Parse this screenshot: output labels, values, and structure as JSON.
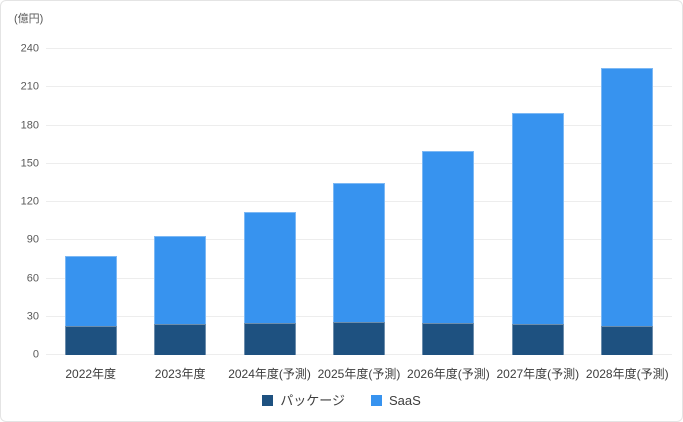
{
  "unit_label": "(億円)",
  "colors": {
    "saas": "#3793ef",
    "package": "#1e5180",
    "gridline": "#ededed",
    "frame_border": "#e4e4e4",
    "tick_text": "#595959",
    "label_text": "#3d3d3d",
    "background": "#ffffff"
  },
  "legend": {
    "items": [
      {
        "label": "パッケージ",
        "color": "#1e5180"
      },
      {
        "label": "SaaS",
        "color": "#3793ef"
      }
    ]
  },
  "chart_data": {
    "type": "bar",
    "stacked": true,
    "title": "",
    "ylabel": "(億円)",
    "xlabel": "",
    "categories": [
      "2022年度",
      "2023年度",
      "2024年度(予測)",
      "2025年度(予測)",
      "2026年度(予測)",
      "2027年度(予測)",
      "2028年度(予測)"
    ],
    "series": [
      {
        "name": "パッケージ",
        "color": "#1e5180",
        "values": [
          23,
          24,
          25,
          26,
          25,
          24,
          23
        ]
      },
      {
        "name": "SaaS",
        "color": "#3793ef",
        "values": [
          55,
          69,
          87,
          109,
          135,
          166,
          202
        ]
      }
    ],
    "totals": [
      78,
      93,
      112,
      135,
      160,
      190,
      225
    ],
    "ylim": [
      0,
      240
    ],
    "ytick_step": 30,
    "yticks": [
      0,
      30,
      60,
      90,
      120,
      150,
      180,
      210,
      240
    ],
    "grid": true,
    "legend_position": "bottom"
  }
}
